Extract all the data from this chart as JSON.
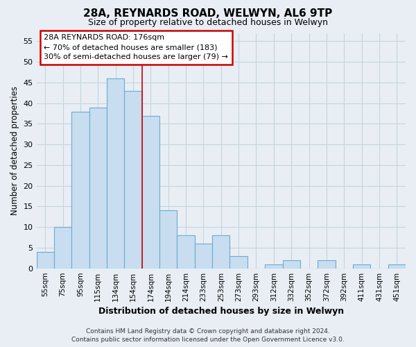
{
  "title": "28A, REYNARDS ROAD, WELWYN, AL6 9TP",
  "subtitle": "Size of property relative to detached houses in Welwyn",
  "xlabel": "Distribution of detached houses by size in Welwyn",
  "ylabel": "Number of detached properties",
  "bar_labels": [
    "55sqm",
    "75sqm",
    "95sqm",
    "115sqm",
    "134sqm",
    "154sqm",
    "174sqm",
    "194sqm",
    "214sqm",
    "233sqm",
    "253sqm",
    "273sqm",
    "293sqm",
    "312sqm",
    "332sqm",
    "352sqm",
    "372sqm",
    "392sqm",
    "411sqm",
    "431sqm",
    "451sqm"
  ],
  "bar_values": [
    4,
    10,
    38,
    39,
    46,
    43,
    37,
    14,
    8,
    6,
    8,
    3,
    0,
    1,
    2,
    0,
    2,
    0,
    1,
    0,
    1
  ],
  "bar_color": "#c8ddef",
  "bar_edge_color": "#6aaad4",
  "ylim": [
    0,
    57
  ],
  "yticks": [
    0,
    5,
    10,
    15,
    20,
    25,
    30,
    35,
    40,
    45,
    50,
    55
  ],
  "property_line_x": 5.5,
  "property_line_color": "#cc0000",
  "annotation_title": "28A REYNARDS ROAD: 176sqm",
  "annotation_line1": "← 70% of detached houses are smaller (183)",
  "annotation_line2": "30% of semi-detached houses are larger (79) →",
  "annotation_box_color": "#cc0000",
  "footer_line1": "Contains HM Land Registry data © Crown copyright and database right 2024.",
  "footer_line2": "Contains public sector information licensed under the Open Government Licence v3.0.",
  "background_color": "#e8eef4",
  "plot_bg_color": "#e8eef4",
  "grid_color": "#c5d4e0"
}
